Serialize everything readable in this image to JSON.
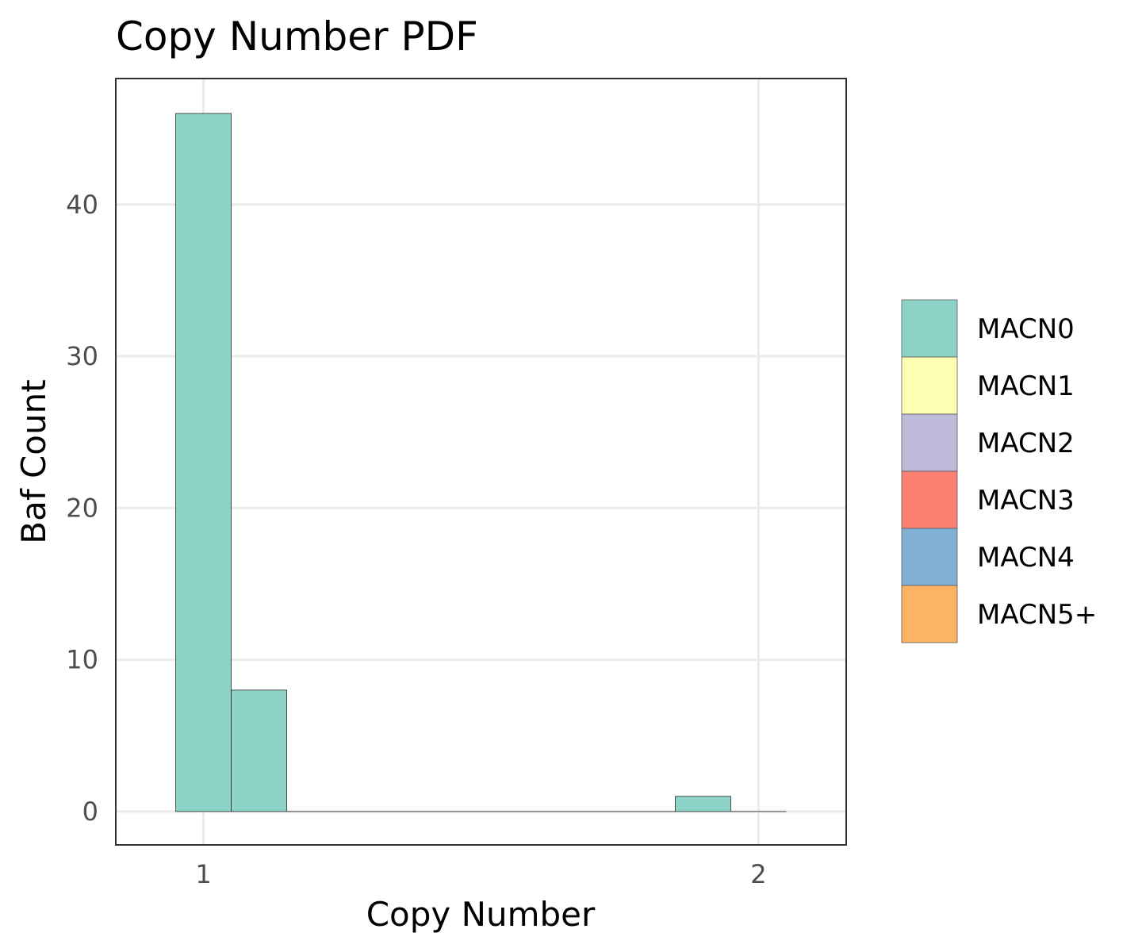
{
  "chart_data": {
    "type": "bar",
    "title": "Copy Number PDF",
    "xlabel": "Copy Number",
    "ylabel": "Baf Count",
    "xlim": [
      0.842,
      2.158
    ],
    "ylim": [
      -2.2,
      48.3
    ],
    "x_ticks": [
      1,
      2
    ],
    "y_ticks": [
      0,
      10,
      20,
      30,
      40
    ],
    "bin_width": 0.1,
    "grid": true,
    "legend_position": "right",
    "series": [
      {
        "name": "MACN0",
        "color": "#8DD3C7",
        "bins": [
          {
            "x0": 0.95,
            "x1": 1.05,
            "value": 46
          },
          {
            "x0": 1.05,
            "x1": 1.15,
            "value": 8
          },
          {
            "x0": 1.15,
            "x1": 1.25,
            "value": 0
          },
          {
            "x0": 1.25,
            "x1": 1.35,
            "value": 0
          },
          {
            "x0": 1.35,
            "x1": 1.45,
            "value": 0
          },
          {
            "x0": 1.45,
            "x1": 1.55,
            "value": 0
          },
          {
            "x0": 1.55,
            "x1": 1.65,
            "value": 0
          },
          {
            "x0": 1.65,
            "x1": 1.75,
            "value": 0
          },
          {
            "x0": 1.75,
            "x1": 1.85,
            "value": 0
          },
          {
            "x0": 1.85,
            "x1": 1.95,
            "value": 1
          },
          {
            "x0": 1.95,
            "x1": 2.05,
            "value": 0
          }
        ]
      },
      {
        "name": "MACN1",
        "color": "#FFFFB3",
        "bins": []
      },
      {
        "name": "MACN2",
        "color": "#BEBADA",
        "bins": []
      },
      {
        "name": "MACN3",
        "color": "#FB8072",
        "bins": []
      },
      {
        "name": "MACN4",
        "color": "#80B1D3",
        "bins": []
      },
      {
        "name": "MACN5+",
        "color": "#FDB462",
        "bins": []
      }
    ]
  }
}
